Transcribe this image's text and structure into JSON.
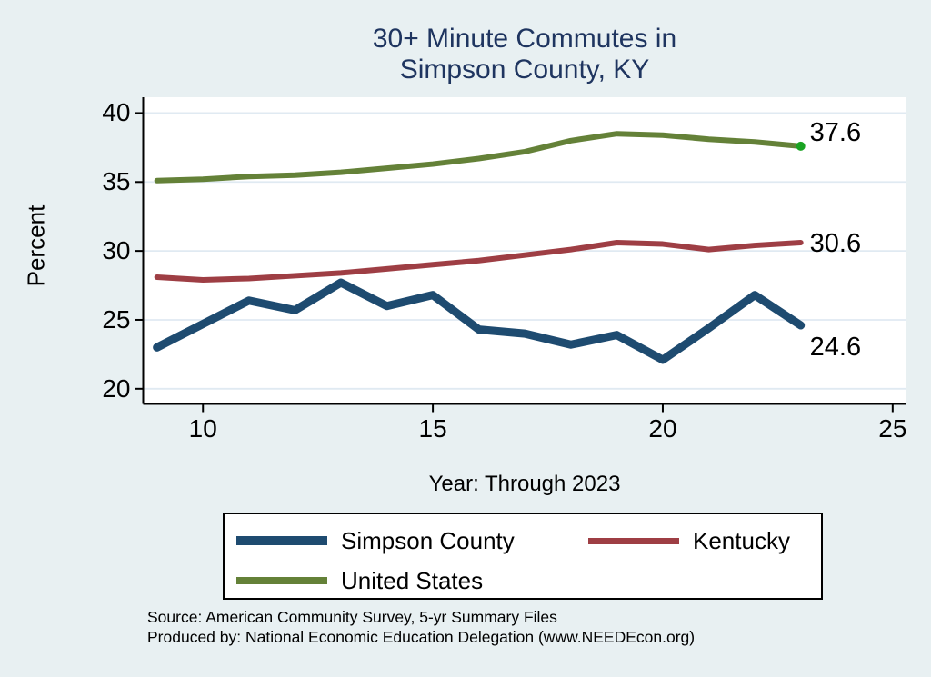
{
  "title": {
    "line1": "30+ Minute Commutes in",
    "line2": "Simpson County, KY"
  },
  "axes": {
    "y_label": "Percent",
    "x_label": "Year: Through 2023",
    "y_ticks": [
      20,
      25,
      30,
      35,
      40
    ],
    "x_ticks": [
      10,
      15,
      20,
      25
    ]
  },
  "chart_data": {
    "type": "line",
    "title": "30+ Minute Commutes in Simpson County, KY",
    "xlabel": "Year: Through 2023",
    "ylabel": "Percent",
    "x": [
      9,
      10,
      11,
      12,
      13,
      14,
      15,
      16,
      17,
      18,
      19,
      20,
      21,
      22,
      23
    ],
    "xlim": [
      8.7,
      25.3
    ],
    "ylim": [
      18.9,
      41.15
    ],
    "grid": true,
    "legend_position": "bottom",
    "series": [
      {
        "name": "Simpson County",
        "color": "#1e4b70",
        "width": 9,
        "end_label": "24.6",
        "values": [
          23.0,
          24.7,
          26.4,
          25.7,
          27.7,
          26.0,
          26.8,
          24.3,
          24.0,
          23.2,
          23.9,
          22.1,
          24.4,
          26.8,
          24.6
        ]
      },
      {
        "name": "Kentucky",
        "color": "#9e3e44",
        "width": 6,
        "end_label": "30.6",
        "values": [
          28.1,
          27.9,
          28.0,
          28.2,
          28.4,
          28.7,
          29.0,
          29.3,
          29.7,
          30.1,
          30.6,
          30.5,
          30.1,
          30.4,
          30.6
        ]
      },
      {
        "name": "United States",
        "color": "#648138",
        "width": 6,
        "end_label": "37.6",
        "end_marker_color": "#1aa322",
        "values": [
          35.1,
          35.2,
          35.4,
          35.5,
          35.7,
          36.0,
          36.3,
          36.7,
          37.2,
          38.0,
          38.5,
          38.4,
          38.1,
          37.9,
          37.6
        ]
      }
    ]
  },
  "legend": {
    "items": [
      {
        "label": "Simpson County"
      },
      {
        "label": "Kentucky"
      },
      {
        "label": "United States"
      }
    ]
  },
  "caption": {
    "source": "Source: American Community Survey, 5-yr Summary Files",
    "produced_by": "Produced by: National Economic Education Delegation (www.NEEDEcon.org)"
  },
  "colors": {
    "background": "#e8f0f2",
    "plot_background": "#ffffff",
    "gridline": "#e0eaf2",
    "axis": "#000000",
    "title_text": "#1f3560"
  }
}
